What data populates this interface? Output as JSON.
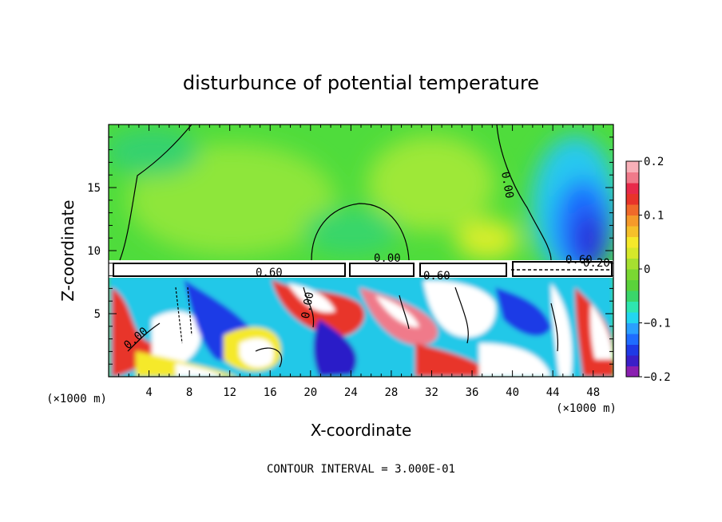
{
  "chart_data": {
    "type": "heatmap",
    "title": "disturbunce of potential temperature",
    "xlabel": "X-coordinate",
    "ylabel": "Z-coordinate",
    "x_unit_left": "(×1000 m)",
    "x_unit_right": "(×1000 m)",
    "footer": "CONTOUR INTERVAL = 3.000E-01",
    "xlim": [
      0,
      50
    ],
    "ylim": [
      0,
      20
    ],
    "x_ticks": [
      "4",
      "8",
      "12",
      "16",
      "20",
      "24",
      "28",
      "32",
      "36",
      "40",
      "44",
      "48"
    ],
    "y_ticks": [
      "5",
      "10",
      "15"
    ],
    "x_tick_values": [
      4,
      8,
      12,
      16,
      20,
      24,
      28,
      32,
      36,
      40,
      44,
      48
    ],
    "y_tick_values": [
      5,
      10,
      15
    ],
    "colorbar": {
      "min": -0.2,
      "max": 0.2,
      "tick_labels": [
        "0.2",
        "0.1",
        "0",
        "−0.1",
        "−0.2"
      ],
      "tick_values": [
        0.2,
        0.1,
        0,
        -0.1,
        -0.2
      ],
      "colors": [
        "#8a1fb0",
        "#3a1fc8",
        "#1f3ae6",
        "#1f6cff",
        "#2aa0ff",
        "#22d6f0",
        "#2ee6b0",
        "#3ad66a",
        "#5ad23a",
        "#7ad832",
        "#a6e030",
        "#d6e82a",
        "#f5e92a",
        "#f5c02a",
        "#f59a2a",
        "#f06a2a",
        "#e8342a",
        "#e82a4a",
        "#f07a8a",
        "#f8b0b8"
      ]
    },
    "contour_labels": [
      "0.00",
      "0.00",
      "0.00",
      "0.00",
      "0.60",
      "0.60",
      "0.60",
      "0.20"
    ]
  }
}
